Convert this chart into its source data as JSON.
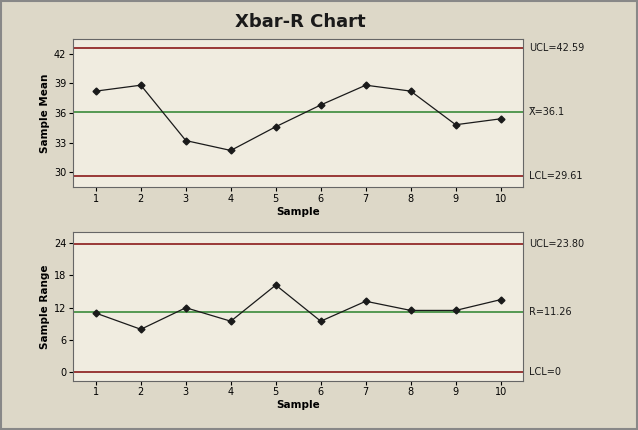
{
  "title": "Xbar-R Chart",
  "bg_color": "#ddd8c8",
  "plot_bg_color": "#f0ece0",
  "xbar": {
    "samples": [
      1,
      2,
      3,
      4,
      5,
      6,
      7,
      8,
      9,
      10
    ],
    "values": [
      38.2,
      38.8,
      33.2,
      32.2,
      34.6,
      36.8,
      38.8,
      38.2,
      34.8,
      35.4
    ],
    "ucl": 42.59,
    "lcl": 29.61,
    "cl": 36.1,
    "ylabel": "Sample Mean",
    "xlabel": "Sample",
    "ylim": [
      28.5,
      43.5
    ],
    "yticks": [
      30,
      33,
      36,
      39,
      42
    ],
    "ucl_label": "UCL=42.59",
    "cl_label": "X̅=36.1",
    "lcl_label": "LCL=29.61"
  },
  "rbar": {
    "samples": [
      1,
      2,
      3,
      4,
      5,
      6,
      7,
      8,
      9,
      10
    ],
    "values": [
      11.0,
      8.0,
      12.0,
      9.5,
      16.2,
      9.5,
      13.2,
      11.5,
      11.5,
      13.5
    ],
    "ucl": 23.8,
    "lcl": 0,
    "cl": 11.26,
    "ylabel": "Sample Range",
    "xlabel": "Sample",
    "ylim": [
      -1.5,
      26
    ],
    "yticks": [
      0,
      6,
      12,
      18,
      24
    ],
    "ucl_label": "UCL=23.80",
    "cl_label": "R=11.26",
    "lcl_label": "LCL=0"
  },
  "line_color": "#1a1a1a",
  "ucl_color": "#8b1a1a",
  "lcl_color": "#8b1a1a",
  "cl_color": "#3a8a3a",
  "marker": "D",
  "marker_size": 3.5,
  "title_fontsize": 13,
  "label_fontsize": 7.5,
  "tick_fontsize": 7,
  "annotation_fontsize": 7
}
